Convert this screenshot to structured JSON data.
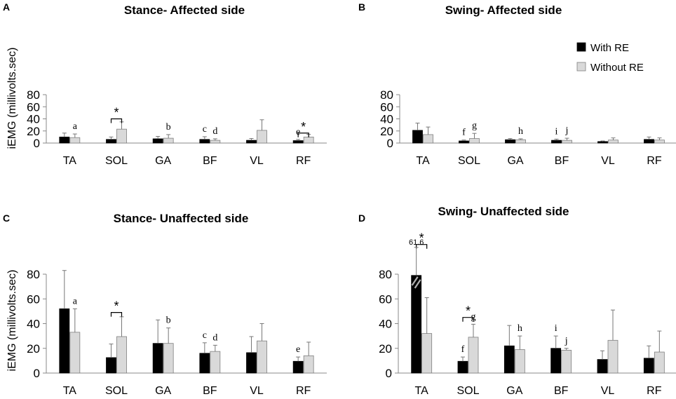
{
  "colors": {
    "with_re": "#000000",
    "without_re": "#d9d9d9",
    "axis": "#888888"
  },
  "legend": {
    "with_re": "With RE",
    "without_re": "Without RE"
  },
  "chart_data": [
    {
      "panel": "A",
      "type": "bar",
      "title": "Stance- Affected side",
      "ylabel": "iEMG (millivolts.sec)",
      "ylim": [
        0,
        80
      ],
      "yticks": [
        "0",
        "20",
        "40",
        "60",
        "80"
      ],
      "categories": [
        "TA",
        "SOL",
        "GA",
        "BF",
        "VL",
        "RF"
      ],
      "series": [
        {
          "name": "With RE",
          "values": [
            10,
            6,
            7,
            6,
            4.5,
            4
          ],
          "errors": [
            6.5,
            4,
            4,
            4.5,
            3,
            2
          ]
        },
        {
          "name": "Without RE",
          "values": [
            9,
            23,
            8,
            4.5,
            21,
            10
          ],
          "errors": [
            6,
            12,
            6,
            2.5,
            17.5,
            4.5
          ]
        }
      ],
      "letters": [
        {
          "cat": 0,
          "series": 1,
          "text": "a"
        },
        {
          "cat": 2,
          "series": 1,
          "text": "b"
        },
        {
          "cat": 3,
          "series": 0,
          "text": "c"
        },
        {
          "cat": 3,
          "series": 1,
          "text": "d"
        },
        {
          "cat": 5,
          "series": 0,
          "text": "e"
        }
      ],
      "significance": [
        {
          "cat": 1,
          "text": "*",
          "level": 40
        },
        {
          "cat": 5,
          "text": "*",
          "level": 16.5
        }
      ]
    },
    {
      "panel": "B",
      "type": "bar",
      "title": "Swing- Affected side",
      "ylabel": "",
      "ylim": [
        0,
        80
      ],
      "yticks": [
        "0",
        "20",
        "40",
        "60",
        "80"
      ],
      "categories": [
        "TA",
        "SOL",
        "GA",
        "BF",
        "VL",
        "RF"
      ],
      "series": [
        {
          "name": "With RE",
          "values": [
            21,
            3.5,
            5.5,
            4.5,
            2.5,
            6
          ],
          "errors": [
            12,
            1.5,
            2,
            2,
            1,
            4
          ]
        },
        {
          "name": "Without RE",
          "values": [
            14,
            7.5,
            5.5,
            4.5,
            5,
            5
          ],
          "errors": [
            12.5,
            8.5,
            1.5,
            3.5,
            3.5,
            3.5
          ]
        }
      ],
      "letters": [
        {
          "cat": 1,
          "series": 0,
          "text": "f"
        },
        {
          "cat": 1,
          "series": 1,
          "text": "g"
        },
        {
          "cat": 2,
          "series": 1,
          "text": "h"
        },
        {
          "cat": 3,
          "series": 0,
          "text": "i"
        },
        {
          "cat": 3,
          "series": 1,
          "text": "j"
        }
      ],
      "significance": []
    },
    {
      "panel": "C",
      "type": "bar",
      "title": "Stance- Unaffected side",
      "ylabel": "iEMG (millivolts.sec)",
      "ylim": [
        0,
        80
      ],
      "yticks": [
        "0",
        "20",
        "40",
        "60",
        "80"
      ],
      "categories": [
        "TA",
        "SOL",
        "GA",
        "BF",
        "VL",
        "RF"
      ],
      "series": [
        {
          "name": "With RE",
          "values": [
            52,
            12.5,
            24,
            16,
            16.5,
            9.5
          ],
          "errors": [
            31,
            11,
            19,
            8.5,
            13,
            3.5
          ]
        },
        {
          "name": "Without RE",
          "values": [
            33,
            29.5,
            24,
            17.5,
            26,
            14
          ],
          "errors": [
            19,
            16,
            12.5,
            5,
            14,
            11
          ]
        }
      ],
      "letters": [
        {
          "cat": 0,
          "series": 1,
          "text": "a"
        },
        {
          "cat": 2,
          "series": 1,
          "text": "b"
        },
        {
          "cat": 3,
          "series": 0,
          "text": "c"
        },
        {
          "cat": 3,
          "series": 1,
          "text": "d"
        },
        {
          "cat": 5,
          "series": 0,
          "text": "e"
        }
      ],
      "significance": [
        {
          "cat": 1,
          "text": "*",
          "level": 49
        }
      ]
    },
    {
      "panel": "D",
      "type": "bar",
      "title": "Swing- Unaffected side",
      "ylabel": "",
      "ylim": [
        0,
        80
      ],
      "yticks": [
        "0",
        "20",
        "40",
        "60",
        "80"
      ],
      "categories": [
        "TA",
        "SOL",
        "GA",
        "BF",
        "VL",
        "RF"
      ],
      "series": [
        {
          "name": "With RE",
          "values": [
            79,
            9.5,
            22,
            20,
            11,
            12
          ],
          "errors": [
            0,
            3.5,
            16.5,
            10,
            7,
            10
          ]
        },
        {
          "name": "Without RE",
          "values": [
            32,
            29,
            19,
            18.5,
            26.5,
            17
          ],
          "errors": [
            29,
            10.5,
            11,
            1.5,
            24.5,
            17
          ]
        }
      ],
      "broken_axis_callout": "61.6",
      "letters": [
        {
          "cat": 1,
          "series": 0,
          "text": "f"
        },
        {
          "cat": 1,
          "series": 1,
          "text": "g"
        },
        {
          "cat": 2,
          "series": 1,
          "text": "h"
        },
        {
          "cat": 3,
          "series": 0,
          "text": "i"
        },
        {
          "cat": 3,
          "series": 1,
          "text": "j"
        }
      ],
      "significance": [
        {
          "cat": 0,
          "text": "*",
          "level": 104
        },
        {
          "cat": 1,
          "text": "*",
          "level": 45
        }
      ]
    }
  ]
}
